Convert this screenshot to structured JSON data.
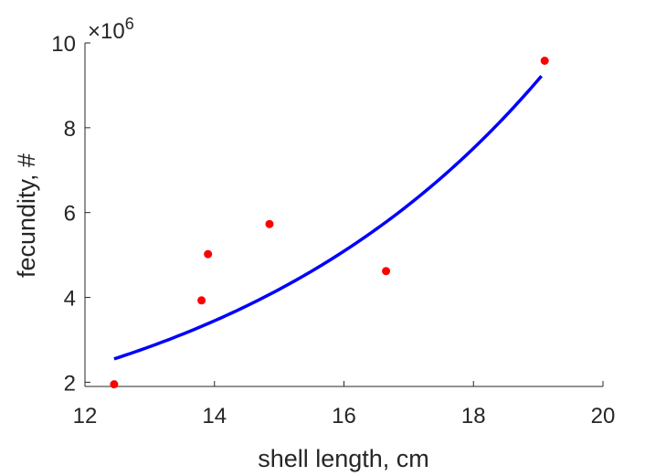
{
  "chart_data": {
    "type": "scatter",
    "title": "",
    "xlabel": "shell length, cm",
    "ylabel": "fecundity, #",
    "xlim": [
      12,
      20
    ],
    "ylim": [
      1.9,
      10
    ],
    "xticks": [
      "12",
      "14",
      "16",
      "18",
      "20"
    ],
    "yticks": [
      "2",
      "4",
      "6",
      "8",
      "10"
    ],
    "y_multiplier_base": "×10",
    "y_multiplier_exp": "6",
    "grid": false,
    "legend": "none",
    "points": {
      "color": "#ff0000",
      "x": [
        12.45,
        13.8,
        13.9,
        14.85,
        16.65,
        19.1
      ],
      "y": [
        1.95,
        3.93,
        5.02,
        5.73,
        4.62,
        9.58
      ]
    },
    "fit_curve": {
      "color": "#0000ff",
      "x_start": 12.45,
      "x_end": 19.05,
      "y_start": 2.55,
      "y_end": 9.22
    }
  }
}
